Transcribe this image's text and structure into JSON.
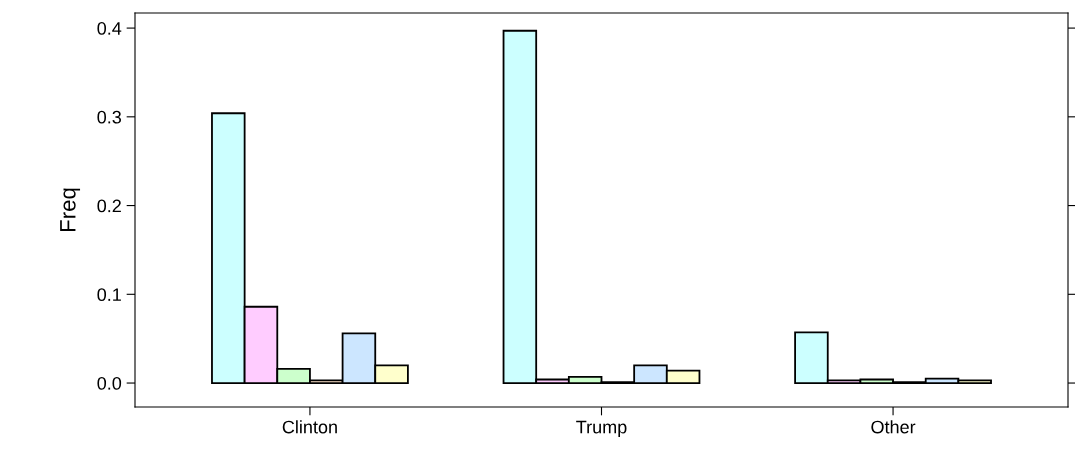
{
  "chart_data": {
    "type": "bar",
    "ylabel": "Freq",
    "categories": [
      "Clinton",
      "Trump",
      "Other"
    ],
    "series": [
      {
        "color": "#ccffff",
        "values": [
          0.304,
          0.397,
          0.057
        ]
      },
      {
        "color": "#ffccff",
        "values": [
          0.086,
          0.004,
          0.003
        ]
      },
      {
        "color": "#ccffcc",
        "values": [
          0.016,
          0.007,
          0.004
        ]
      },
      {
        "color": "#ffe5cc",
        "values": [
          0.003,
          0.001,
          0.001
        ]
      },
      {
        "color": "#cce6ff",
        "values": [
          0.056,
          0.02,
          0.005
        ]
      },
      {
        "color": "#ffffcc",
        "values": [
          0.02,
          0.014,
          0.003
        ]
      }
    ],
    "ylim": [
      -0.027,
      0.417
    ],
    "yticks": [
      {
        "value": 0,
        "label": "0.0"
      },
      0.1,
      0.2,
      0.3,
      0.4
    ],
    "grid": false,
    "legend": false
  }
}
